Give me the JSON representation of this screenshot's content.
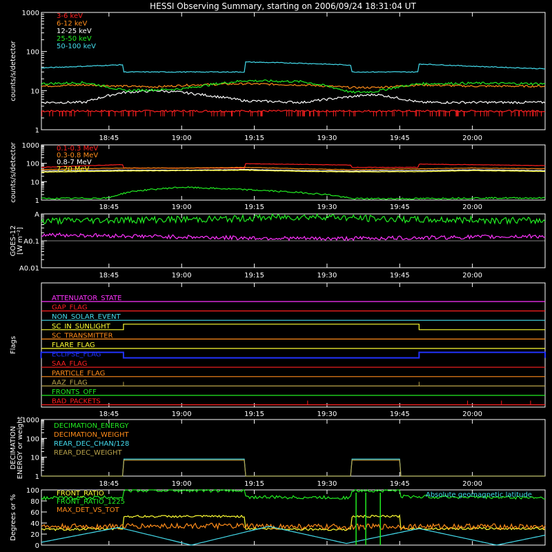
{
  "title": "HESSI Observing Summary, starting on 2006/09/24 18:31:04 UT",
  "time_ticks": [
    "18:45",
    "19:00",
    "19:15",
    "19:30",
    "19:45",
    "20:00"
  ],
  "colors": {
    "red": "#ff2020",
    "orange": "#ff8c1a",
    "yellow": "#ffff33",
    "green": "#22ee22",
    "cyan": "#44ddee",
    "magenta": "#ff33ff",
    "blue": "#2233ff",
    "olive": "#b8a24a",
    "white": "#ffffff"
  },
  "chart_data": [
    {
      "type": "line",
      "id": "low_energy",
      "ylabel": "counts/s/detector",
      "ylim": [
        1,
        1000
      ],
      "log": true,
      "yticks": [
        "1",
        "10",
        "100",
        "1000"
      ],
      "x_range": [
        "18:31:04",
        "20:15"
      ],
      "series": [
        {
          "name": "3-6 keV",
          "color": "red",
          "x": [
            "18:31",
            "18:38",
            "18:48",
            "18:55",
            "19:03",
            "19:13",
            "19:25",
            "19:35",
            "19:42",
            "19:49",
            "20:00",
            "20:15"
          ],
          "values": [
            3,
            3,
            3,
            3,
            3,
            3,
            3,
            3,
            3,
            3,
            3,
            3
          ]
        },
        {
          "name": "6-12 keV",
          "color": "orange",
          "x": [
            "18:31",
            "18:40",
            "18:48",
            "18:55",
            "19:02",
            "19:13",
            "19:25",
            "19:35",
            "19:40",
            "19:49",
            "20:00",
            "20:15"
          ],
          "values": [
            13,
            14,
            13,
            12.5,
            14,
            15,
            14,
            12,
            12,
            14,
            13,
            13
          ]
        },
        {
          "name": "12-25 keV",
          "color": "white",
          "x": [
            "18:31",
            "18:40",
            "18:48",
            "18:55",
            "19:00",
            "19:13",
            "19:25",
            "19:35",
            "19:40",
            "19:49",
            "20:00",
            "20:15"
          ],
          "values": [
            5,
            5,
            9,
            10,
            9,
            5.5,
            5,
            7,
            8,
            5,
            5,
            5
          ]
        },
        {
          "name": "25-50 keV",
          "color": "green",
          "x": [
            "18:31",
            "18:40",
            "18:48",
            "18:55",
            "19:00",
            "19:13",
            "19:25",
            "19:35",
            "19:40",
            "19:49",
            "20:00",
            "20:15"
          ],
          "values": [
            15,
            16,
            10,
            10.5,
            11,
            18,
            17,
            9,
            9.5,
            15,
            15.5,
            15
          ]
        },
        {
          "name": "50-100 keV",
          "color": "cyan",
          "x": [
            "18:31",
            "18:40",
            "18:48",
            "18:48",
            "19:13",
            "19:13",
            "19:25",
            "19:35",
            "19:35",
            "19:49",
            "19:49",
            "20:00",
            "20:15"
          ],
          "values": [
            38,
            42,
            46,
            30,
            30,
            54,
            50,
            45,
            30,
            30,
            48,
            42,
            36
          ]
        }
      ]
    },
    {
      "type": "line",
      "id": "high_energy",
      "ylabel": "counts/s/detector",
      "ylim": [
        1,
        1000
      ],
      "log": true,
      "yticks": [
        "1",
        "10",
        "100",
        "1000"
      ],
      "series": [
        {
          "name": "0.1-0.3 MeV",
          "color": "red",
          "x": [
            "18:31",
            "18:48",
            "18:48",
            "19:13",
            "19:13",
            "19:35",
            "19:35",
            "19:49",
            "19:49",
            "20:15"
          ],
          "values": [
            60,
            85,
            55,
            55,
            95,
            80,
            60,
            60,
            90,
            75
          ]
        },
        {
          "name": "0.3-0.8 MeV",
          "color": "orange",
          "x": [
            "18:31",
            "18:48",
            "19:00",
            "19:13",
            "19:25",
            "19:35",
            "19:49",
            "20:00",
            "20:15"
          ],
          "values": [
            45,
            55,
            55,
            60,
            50,
            45,
            50,
            55,
            50
          ]
        },
        {
          "name": "0.8-7 MeV",
          "color": "white",
          "x": [
            "18:31",
            "18:48",
            "19:00",
            "19:13",
            "19:25",
            "19:35",
            "19:49",
            "20:00",
            "20:15"
          ],
          "values": [
            38,
            42,
            42,
            46,
            40,
            38,
            40,
            44,
            40
          ]
        },
        {
          "name": "7-20 MeV",
          "color": "yellow",
          "x": [
            "18:31",
            "18:48",
            "19:00",
            "19:13",
            "19:25",
            "19:35",
            "19:49",
            "20:00",
            "20:15"
          ],
          "values": [
            33,
            38,
            40,
            42,
            36,
            34,
            35,
            40,
            36
          ]
        },
        {
          "name": "",
          "color": "green",
          "x": [
            "18:31",
            "18:45",
            "18:50",
            "19:00",
            "19:10",
            "19:20",
            "19:30",
            "19:35",
            "19:50",
            "20:00",
            "20:15"
          ],
          "values": [
            1.2,
            1.3,
            3,
            5,
            4,
            3,
            2,
            1.2,
            1.2,
            1.3,
            1.3
          ]
        }
      ]
    },
    {
      "type": "line",
      "id": "goes",
      "ylabel": "GOES-12",
      "ylabel2": "[W m⁻²]",
      "ylim": [
        0.01,
        1
      ],
      "log": true,
      "yticks": [
        "A0.01",
        "A0.1",
        "A"
      ],
      "series": [
        {
          "name": "",
          "color": "green",
          "x": [
            "18:31",
            "18:50",
            "19:10",
            "19:20",
            "19:30",
            "19:35",
            "19:50",
            "20:00",
            "20:15"
          ],
          "values": [
            0.55,
            0.6,
            0.65,
            0.75,
            0.8,
            0.7,
            0.6,
            0.6,
            0.55
          ]
        },
        {
          "name": "",
          "color": "magenta",
          "x": [
            "18:31",
            "18:50",
            "19:10",
            "19:30",
            "19:50",
            "20:15"
          ],
          "values": [
            0.17,
            0.15,
            0.13,
            0.12,
            0.13,
            0.15
          ]
        }
      ]
    },
    {
      "type": "line",
      "id": "flags",
      "ylabel": "Flags",
      "flags": [
        {
          "name": "ATTENUATOR_STATE",
          "color": "magenta",
          "segments": []
        },
        {
          "name": "GAP_FLAG",
          "color": "red",
          "segments": []
        },
        {
          "name": "NON_SOLAR_EVENT",
          "color": "cyan",
          "segments": []
        },
        {
          "name": "SC_IN_SUNLIGHT",
          "color": "yellow",
          "segments": [
            [
              "18:48",
              "19:49"
            ]
          ]
        },
        {
          "name": "SC_TRANSMITTER",
          "color": "orange",
          "segments": []
        },
        {
          "name": "FLARE_FLAG",
          "color": "yellow",
          "segments": []
        },
        {
          "name": "ECLIPSE_FLAG",
          "color": "blue",
          "segments": [
            [
              "18:31",
              "18:48"
            ],
            [
              "19:49",
              "20:15"
            ]
          ]
        },
        {
          "name": "SAA_FLAG",
          "color": "red",
          "segments": []
        },
        {
          "name": "PARTICLE_FLAG",
          "color": "orange",
          "segments": []
        },
        {
          "name": "AAZ_FLAG",
          "color": "olive",
          "spikes": [
            "18:48",
            "19:49"
          ]
        },
        {
          "name": "FRONTS_OFF",
          "color": "green",
          "segments": []
        },
        {
          "name": "BAD_PACKETS",
          "color": "red",
          "spikes": [
            "19:26",
            "19:59",
            "20:06",
            "20:12"
          ]
        }
      ]
    },
    {
      "type": "line",
      "id": "decimation",
      "ylabel": "DECIMATION",
      "ylabel2": "ENERGY or weight",
      "ylim": [
        1,
        1000
      ],
      "log": true,
      "yticks": [
        "1",
        "10",
        "100",
        "1000"
      ],
      "series": [
        {
          "name": "DECIMATION_ENERGY",
          "color": "green",
          "x": [],
          "values": []
        },
        {
          "name": "DECIMATION_WEIGHT",
          "color": "orange",
          "x": [],
          "values": []
        },
        {
          "name": "REAR_DEC_CHAN/128",
          "color": "cyan",
          "x": [
            "18:31",
            "18:48",
            "18:48",
            "19:13",
            "19:13",
            "19:35",
            "19:35",
            "19:45",
            "19:45",
            "20:15"
          ],
          "values": [
            1,
            1,
            8,
            8,
            1,
            1,
            8,
            8,
            1,
            1
          ]
        },
        {
          "name": "REAR_DEC_WEIGHT",
          "color": "olive",
          "x": [
            "18:31",
            "18:48",
            "18:48",
            "19:13",
            "19:13",
            "19:35",
            "19:35",
            "19:45",
            "19:45",
            "20:15"
          ],
          "values": [
            1,
            1,
            7,
            7,
            1,
            1,
            7,
            7,
            1,
            1
          ]
        }
      ]
    },
    {
      "type": "line",
      "id": "orbit",
      "ylabel": "Degrees or %",
      "ylim": [
        0,
        100
      ],
      "log": false,
      "yticks": [
        "0",
        "20",
        "40",
        "60",
        "80",
        "100"
      ],
      "annotation": "Absolute geomagnetic latitude",
      "series": [
        {
          "name": "FRONT_RATIO",
          "color": "yellow",
          "x": [
            "18:31",
            "18:48",
            "18:48",
            "19:13",
            "19:13",
            "19:35",
            "19:35",
            "19:45",
            "19:45",
            "20:15"
          ],
          "values": [
            28,
            30,
            52,
            52,
            30,
            28,
            52,
            52,
            30,
            30
          ]
        },
        {
          "name": "FRONT_RATIO_1225",
          "color": "green",
          "x": [
            "18:31",
            "18:48",
            "18:48",
            "19:13",
            "19:13",
            "19:35",
            "19:35",
            "19:45",
            "19:45",
            "20:15"
          ],
          "values": [
            85,
            87,
            99,
            99,
            87,
            86,
            99,
            99,
            88,
            86
          ]
        },
        {
          "name": "MAX_DET_VS_TOT",
          "color": "orange",
          "x": [
            "18:31",
            "19:00",
            "19:30",
            "20:00",
            "20:15"
          ],
          "values": [
            33,
            35,
            33,
            34,
            33
          ]
        },
        {
          "name": "",
          "color": "cyan",
          "x": [
            "18:31",
            "18:47",
            "19:02",
            "19:18",
            "19:34",
            "19:49",
            "20:05",
            "20:15"
          ],
          "values": [
            5,
            32,
            0,
            34,
            3,
            30,
            0,
            18
          ]
        }
      ]
    }
  ]
}
